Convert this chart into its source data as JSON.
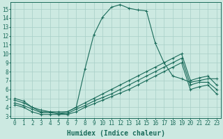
{
  "xlabel": "Humidex (Indice chaleur)",
  "ylabel": "",
  "xlim": [
    -0.5,
    23.5
  ],
  "ylim": [
    2.8,
    15.8
  ],
  "xticks": [
    0,
    1,
    2,
    3,
    4,
    5,
    6,
    7,
    8,
    9,
    10,
    11,
    12,
    13,
    14,
    15,
    16,
    17,
    18,
    19,
    20,
    21,
    22,
    23
  ],
  "yticks": [
    3,
    4,
    5,
    6,
    7,
    8,
    9,
    10,
    11,
    12,
    13,
    14,
    15
  ],
  "bg_color": "#cce9e1",
  "grid_color": "#a8cec7",
  "line_color": "#1a6b5a",
  "series": [
    {
      "x": [
        0,
        1,
        2,
        3,
        4,
        5,
        6,
        7,
        8,
        9,
        10,
        11,
        12,
        13,
        14,
        15,
        16,
        17,
        18,
        19,
        20,
        21,
        22,
        23
      ],
      "y": [
        5.0,
        4.7,
        4.0,
        3.7,
        3.5,
        3.5,
        3.5,
        4.0,
        8.3,
        12.1,
        14.1,
        15.2,
        15.5,
        15.1,
        14.9,
        14.8,
        11.2,
        9.0,
        7.5,
        7.2,
        6.8,
        7.0,
        7.2,
        7.2
      ]
    },
    {
      "x": [
        0,
        1,
        2,
        3,
        4,
        5,
        6,
        7,
        8,
        9,
        10,
        11,
        12,
        13,
        14,
        15,
        16,
        17,
        18,
        19,
        20,
        21,
        22,
        23
      ],
      "y": [
        4.8,
        4.5,
        4.0,
        3.5,
        3.5,
        3.3,
        3.5,
        4.0,
        4.5,
        5.0,
        5.5,
        6.0,
        6.5,
        7.0,
        7.5,
        8.0,
        8.5,
        9.0,
        9.5,
        10.0,
        7.0,
        7.3,
        7.5,
        6.5
      ]
    },
    {
      "x": [
        0,
        1,
        2,
        3,
        4,
        5,
        6,
        7,
        8,
        9,
        10,
        11,
        12,
        13,
        14,
        15,
        16,
        17,
        18,
        19,
        20,
        21,
        22,
        23
      ],
      "y": [
        4.5,
        4.2,
        3.8,
        3.4,
        3.4,
        3.3,
        3.3,
        3.8,
        4.2,
        4.7,
        5.1,
        5.5,
        6.0,
        6.5,
        7.0,
        7.5,
        8.0,
        8.5,
        9.0,
        9.5,
        6.5,
        6.8,
        6.8,
        6.0
      ]
    },
    {
      "x": [
        0,
        1,
        2,
        3,
        4,
        5,
        6,
        7,
        8,
        9,
        10,
        11,
        12,
        13,
        14,
        15,
        16,
        17,
        18,
        19,
        20,
        21,
        22,
        23
      ],
      "y": [
        4.3,
        4.0,
        3.5,
        3.2,
        3.2,
        3.2,
        3.2,
        3.5,
        4.0,
        4.4,
        4.8,
        5.2,
        5.6,
        6.0,
        6.5,
        7.0,
        7.5,
        8.0,
        8.5,
        9.0,
        6.0,
        6.3,
        6.5,
        5.5
      ]
    }
  ],
  "font_family": "monospace",
  "title_fontsize": 7,
  "tick_fontsize": 5.5,
  "label_fontsize": 7,
  "marker_size": 2.5,
  "linewidth": 0.8
}
